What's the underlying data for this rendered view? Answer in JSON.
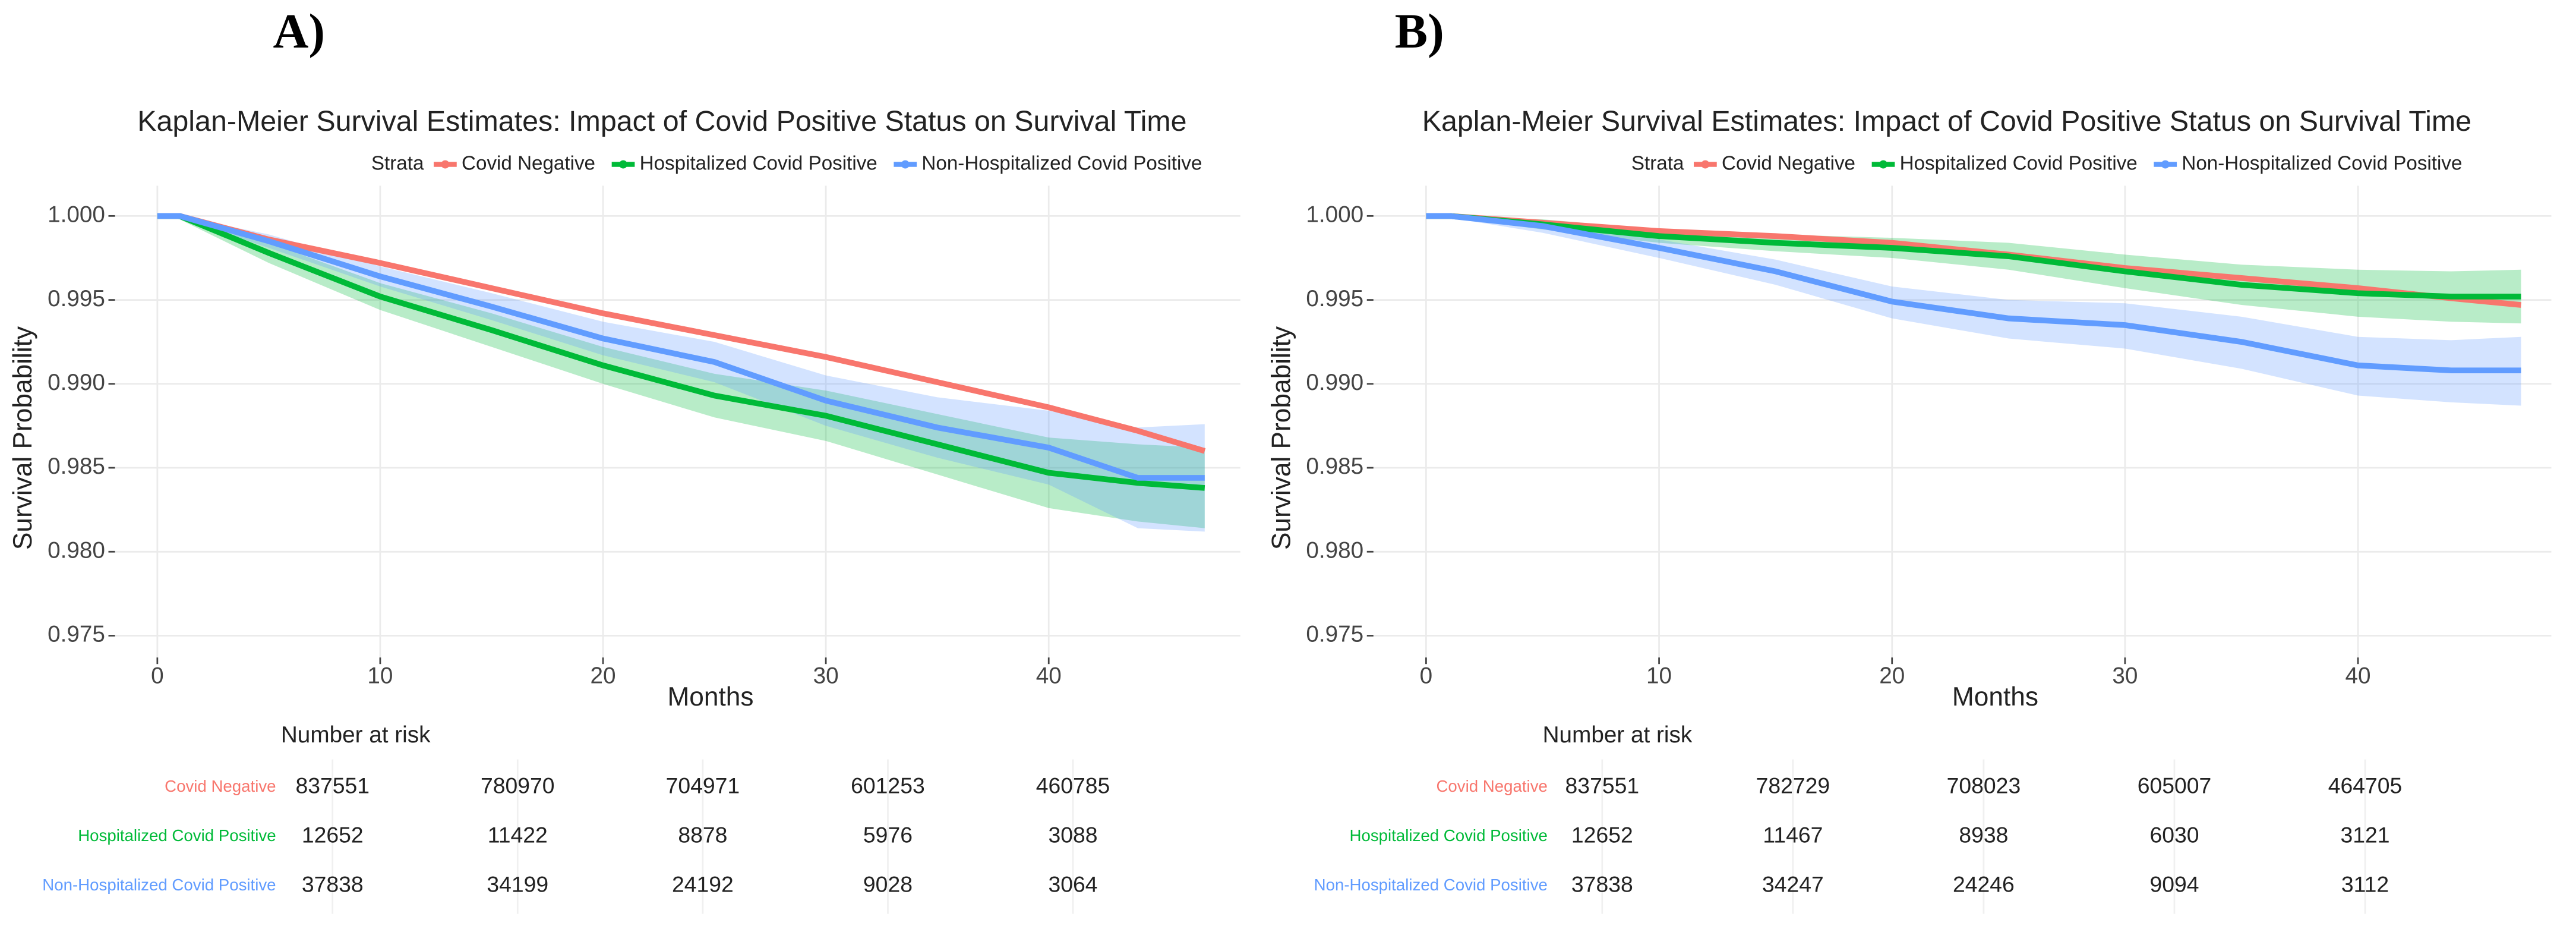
{
  "chart_data": [
    {
      "type": "line",
      "panel_label": "A)",
      "title": "Kaplan-Meier Survival Estimates: Impact of Covid Positive Status on Survival Time",
      "legend_title": "Strata",
      "xlabel": "Months",
      "ylabel": "Survival Probability",
      "risk_table_title": "Number at risk",
      "x": [
        0,
        1,
        5,
        10,
        15,
        20,
        25,
        30,
        35,
        40,
        44,
        47
      ],
      "xlim": [
        -1.9,
        48.6
      ],
      "xticks": [
        0,
        10,
        20,
        30,
        40
      ],
      "ylim": [
        0.9737,
        1.0018
      ],
      "yticks": [
        {
          "value": 1,
          "label": "1.000"
        },
        0.995,
        {
          "value": 0.99,
          "label": "0.990"
        },
        0.985,
        {
          "value": 0.98,
          "label": "0.980"
        },
        0.975
      ],
      "grid": true,
      "series": [
        {
          "name": "Covid Negative",
          "color": "#f8766d",
          "values": [
            1,
            1,
            0.9986,
            0.9972,
            0.9957,
            0.9942,
            0.9929,
            0.9916,
            0.9901,
            0.9886,
            0.9872,
            0.986
          ],
          "at_risk": [
            837551,
            780970,
            704971,
            601253,
            460785
          ]
        },
        {
          "name": "Hospitalized Covid Positive",
          "color": "#00ba38",
          "values": [
            1,
            1,
            0.9978,
            0.9952,
            0.9932,
            0.9911,
            0.9893,
            0.9881,
            0.9864,
            0.9847,
            0.9841,
            0.9838
          ],
          "ci_lower": [
            1,
            0.9998,
            0.9972,
            0.9944,
            0.9922,
            0.99,
            0.988,
            0.9866,
            0.9846,
            0.9826,
            0.9818,
            0.9814
          ],
          "ci_upper": [
            1,
            1,
            0.9984,
            0.996,
            0.9942,
            0.9922,
            0.9906,
            0.9896,
            0.9882,
            0.9868,
            0.9864,
            0.9862
          ],
          "at_risk": [
            12652,
            11422,
            8878,
            5976,
            3088
          ]
        },
        {
          "name": "Non-Hospitalized Covid Positive",
          "color": "#619cff",
          "values": [
            1,
            1,
            0.9985,
            0.9964,
            0.9946,
            0.9927,
            0.9913,
            0.989,
            0.9874,
            0.9862,
            0.9844,
            0.9844
          ],
          "ci_lower": [
            1,
            0.9999,
            0.9981,
            0.9958,
            0.9938,
            0.9917,
            0.9901,
            0.9875,
            0.9856,
            0.984,
            0.9814,
            0.9812
          ],
          "ci_upper": [
            1,
            1,
            0.9989,
            0.997,
            0.9954,
            0.9937,
            0.9925,
            0.9905,
            0.9892,
            0.9884,
            0.9874,
            0.9876
          ],
          "at_risk": [
            37838,
            34199,
            24192,
            9028,
            3064
          ]
        }
      ]
    },
    {
      "type": "line",
      "panel_label": "B)",
      "title": "Kaplan-Meier Survival Estimates: Impact of Covid Positive Status on Survival Time",
      "legend_title": "Strata",
      "xlabel": "Months",
      "ylabel": "Survival Probability",
      "risk_table_title": "Number at risk",
      "x": [
        0,
        1,
        5,
        10,
        15,
        20,
        25,
        30,
        35,
        40,
        44,
        47
      ],
      "xlim": [
        -2.26,
        48.3
      ],
      "xticks": [
        0,
        10,
        20,
        30,
        40
      ],
      "ylim": [
        0.9737,
        1.0018
      ],
      "yticks": [
        {
          "value": 1,
          "label": "1.000"
        },
        0.995,
        {
          "value": 0.99,
          "label": "0.990"
        },
        0.985,
        {
          "value": 0.98,
          "label": "0.980"
        },
        0.975
      ],
      "grid": true,
      "series": [
        {
          "name": "Covid Negative",
          "color": "#f8766d",
          "values": [
            1,
            1,
            0.9996,
            0.9991,
            0.9988,
            0.9984,
            0.9977,
            0.9969,
            0.9963,
            0.9957,
            0.9951,
            0.9947
          ],
          "at_risk": [
            837551,
            782729,
            708023,
            605007,
            464705
          ]
        },
        {
          "name": "Hospitalized Covid Positive",
          "color": "#00ba38",
          "values": [
            1,
            1,
            0.9995,
            0.9988,
            0.9984,
            0.9981,
            0.9976,
            0.9967,
            0.9959,
            0.9954,
            0.9952,
            0.9952
          ],
          "ci_lower": [
            1,
            0.9999,
            0.9992,
            0.9984,
            0.9979,
            0.9975,
            0.9968,
            0.9957,
            0.9947,
            0.994,
            0.9937,
            0.9936
          ],
          "ci_upper": [
            1,
            1,
            0.9998,
            0.9992,
            0.9989,
            0.9987,
            0.9984,
            0.9977,
            0.9971,
            0.9968,
            0.9967,
            0.9968
          ],
          "at_risk": [
            12652,
            11467,
            8938,
            6030,
            3121
          ]
        },
        {
          "name": "Non-Hospitalized Covid Positive",
          "color": "#619cff",
          "values": [
            1,
            1,
            0.9994,
            0.9981,
            0.9967,
            0.9949,
            0.9939,
            0.9935,
            0.9925,
            0.9911,
            0.9908,
            0.9908
          ],
          "ci_lower": [
            1,
            0.9999,
            0.999,
            0.9975,
            0.9959,
            0.9939,
            0.9927,
            0.9921,
            0.9909,
            0.9893,
            0.9889,
            0.9887
          ],
          "ci_upper": [
            1,
            1,
            0.9997,
            0.9986,
            0.9974,
            0.9958,
            0.995,
            0.9948,
            0.994,
            0.9928,
            0.9926,
            0.9928
          ],
          "at_risk": [
            37838,
            34247,
            24246,
            9094,
            3112
          ]
        }
      ]
    }
  ]
}
